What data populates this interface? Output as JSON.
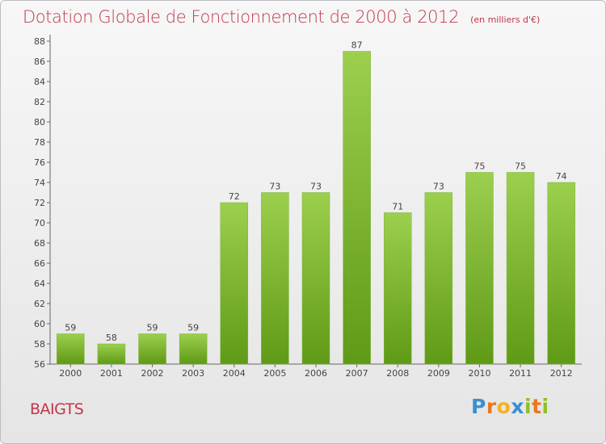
{
  "chart_data": {
    "type": "bar",
    "title": "Dotation Globale de Fonctionnement de 2000 à 2012",
    "unit_label": "(en milliers d'€)",
    "categories": [
      "2000",
      "2001",
      "2002",
      "2003",
      "2004",
      "2005",
      "2006",
      "2007",
      "2008",
      "2009",
      "2010",
      "2011",
      "2012"
    ],
    "values": [
      59,
      58,
      59,
      59,
      72,
      73,
      73,
      87,
      71,
      73,
      75,
      75,
      74
    ],
    "data_labels": [
      "59",
      "58",
      "59",
      "59",
      "72",
      "73",
      "73",
      "87",
      "71",
      "73",
      "75",
      "75",
      "74"
    ],
    "ylim": [
      56,
      88
    ],
    "yticks": [
      56,
      58,
      60,
      62,
      64,
      66,
      68,
      70,
      72,
      74,
      76,
      78,
      80,
      82,
      84,
      86,
      88
    ],
    "xlabel": "",
    "ylabel": "",
    "grid": false,
    "bar_color_top": "#9ccf4e",
    "bar_color_bottom": "#5f9a16"
  },
  "commune": "BAIGTS",
  "brand": {
    "letters": [
      "P",
      "r",
      "o",
      "x",
      "i",
      "t",
      "i"
    ],
    "colors": [
      "#3a8fd0",
      "#e8781f",
      "#f2b21b",
      "#3a8fd0",
      "#8fbf2a",
      "#e8781f",
      "#8fbf2a"
    ]
  },
  "colors": {
    "title": "#c1374a",
    "axis": "#555555",
    "text": "#444444"
  }
}
